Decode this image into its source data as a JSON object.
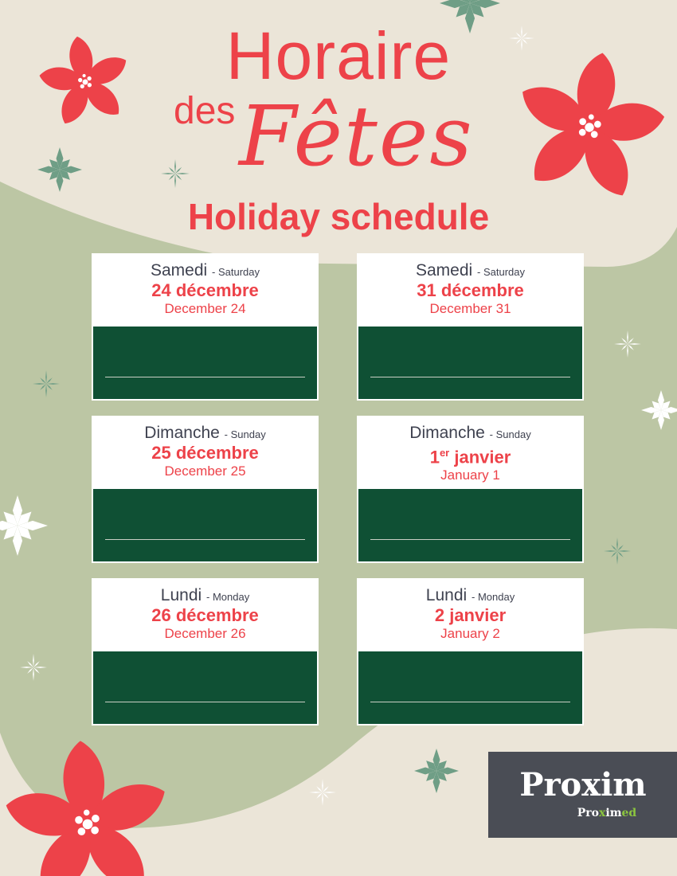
{
  "header": {
    "title_line1": "Horaire",
    "title_des": "des",
    "title_fetes": "Fêtes",
    "subtitle": "Holiday schedule"
  },
  "colors": {
    "red": "#ed4249",
    "dark_green": "#0f5034",
    "sage": "#bcc6a4",
    "beige": "#ebe5d8",
    "star_green": "#6f9e86"
  },
  "cards": [
    {
      "day_fr": "Samedi",
      "day_en": "- Saturday",
      "date_fr": "24 décembre",
      "date_fr_sup": "",
      "date_en": "December 24"
    },
    {
      "day_fr": "Samedi",
      "day_en": "- Saturday",
      "date_fr": "31 décembre",
      "date_fr_sup": "",
      "date_en": "December 31"
    },
    {
      "day_fr": "Dimanche",
      "day_en": "- Sunday",
      "date_fr": "25 décembre",
      "date_fr_sup": "",
      "date_en": "December 25"
    },
    {
      "day_fr": "Dimanche",
      "day_en": "- Sunday",
      "date_fr_num": "1",
      "date_fr_sup": "er",
      "date_fr": " janvier",
      "date_en": "January 1"
    },
    {
      "day_fr": "Lundi",
      "day_en": "- Monday",
      "date_fr": "26 décembre",
      "date_fr_sup": "",
      "date_en": "December 26"
    },
    {
      "day_fr": "Lundi",
      "day_en": "- Monday",
      "date_fr": "2 janvier",
      "date_fr_sup": "",
      "date_en": "January 2"
    }
  ],
  "logo": {
    "brand": "Proxim",
    "sub_a": "Pro",
    "sub_b": "x",
    "sub_c": "im",
    "sub_d": "ed"
  }
}
